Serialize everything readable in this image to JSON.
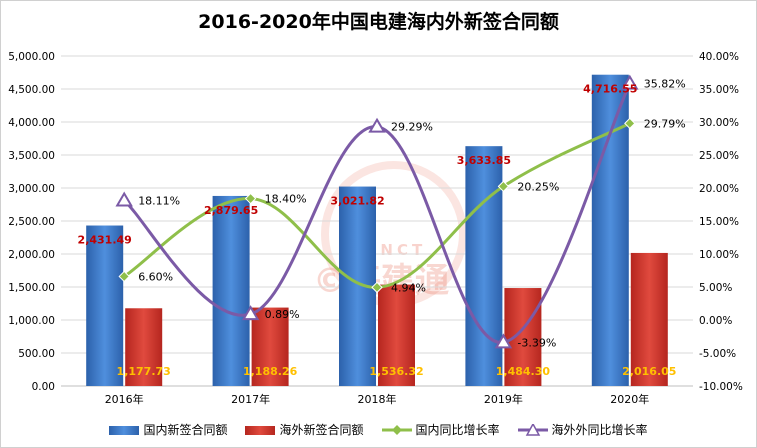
{
  "chart_data": {
    "type": "bar",
    "title": "2016-2020年中国电建海内外新签合同额",
    "categories": [
      "2016年",
      "2017年",
      "2018年",
      "2019年",
      "2020年"
    ],
    "series": [
      {
        "name": "国内新签合同额",
        "type": "bar",
        "axis": "left",
        "color": "#3a78c9",
        "values": [
          2431.49,
          2879.65,
          3021.82,
          3633.85,
          4716.55
        ],
        "labels": [
          "2,431.49",
          "2,879.65",
          "3,021.82",
          "3,633.85",
          "4,716.55"
        ],
        "label_color": "#c00000"
      },
      {
        "name": "海外新签合同额",
        "type": "bar",
        "axis": "left",
        "color": "#d33a30",
        "values": [
          1177.73,
          1188.26,
          1536.32,
          1484.3,
          2016.05
        ],
        "labels": [
          "1,177.73",
          "1,188.26",
          "1,536.32",
          "1,484.30",
          "2,016.05"
        ],
        "label_color": "#ffc000"
      },
      {
        "name": "国内同比增长率",
        "type": "line",
        "axis": "right",
        "color": "#8fbf4a",
        "marker": "diamond",
        "values": [
          6.6,
          18.4,
          4.94,
          20.25,
          29.79
        ],
        "labels": [
          "6.60%",
          "18.40%",
          "4.94%",
          "20.25%",
          "29.79%"
        ]
      },
      {
        "name": "海外外同比增长率",
        "type": "line",
        "axis": "right",
        "color": "#7b5aa6",
        "marker": "triangle",
        "values": [
          18.11,
          0.89,
          29.29,
          -3.39,
          35.82
        ],
        "labels": [
          "18.11%",
          "0.89%",
          "29.29%",
          "-3.39%",
          "35.82%"
        ]
      }
    ],
    "y_left": {
      "range": [
        0,
        5000
      ],
      "ticks": [
        "0.00",
        "500.00",
        "1,000.00",
        "1,500.00",
        "2,000.00",
        "2,500.00",
        "3,000.00",
        "3,500.00",
        "4,000.00",
        "4,500.00",
        "5,000.00"
      ]
    },
    "y_right": {
      "range": [
        -10,
        40
      ],
      "ticks": [
        "-10.00%",
        "-5.00%",
        "0.00%",
        "5.00%",
        "10.00%",
        "15.00%",
        "20.00%",
        "25.00%",
        "30.00%",
        "35.00%",
        "40.00%"
      ]
    },
    "grid": true,
    "legend": "bottom"
  },
  "watermark": {
    "brand": "CINCT",
    "text": "©基建通"
  }
}
